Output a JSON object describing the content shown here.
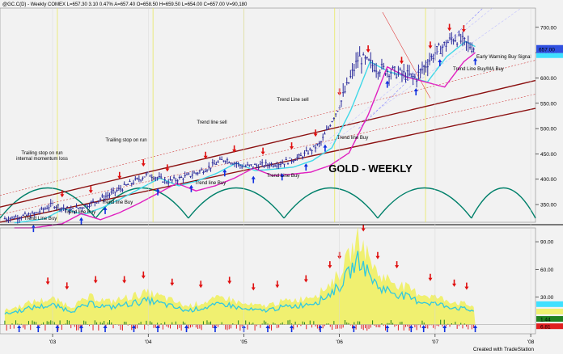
{
  "header": {
    "text": "@GC.C(D) - Weekly COMEX L=657.30 3.10 0.47% A=657.40 O=658.50 H=659.50 L=654.00 C=657.00 V=90,180"
  },
  "footer": {
    "credit": "Created with TradeStation"
  },
  "colors": {
    "background": "#f2f2f2",
    "bars": "#2a2a9a",
    "sell_arrow": "#e01010",
    "buy_arrow": "#1030e0",
    "trend_channel": "#8b1010",
    "ma_fast": "#40d8e8",
    "ma_slow": "#e020c0",
    "cycle": "#00806a",
    "osc_fill": "#f0f070",
    "osc_line": "#30c8e0",
    "hist_pos": "#208020",
    "hist_neg": "#e02020"
  },
  "chart_data": [
    {
      "type": "candlestick",
      "title": "GOLD - WEEKLY",
      "ylim": [
        315,
        738
      ],
      "y_ticks": [
        "700.00",
        "650.00",
        "600.00",
        "550.00",
        "500.00",
        "450.00",
        "400.00",
        "350.00"
      ],
      "x_ticks": [
        "'03",
        "'04",
        "'05",
        "'06",
        "'07",
        "'08"
      ],
      "last_price": "657.00",
      "x": [
        2002.5,
        2002.8,
        2003.0,
        2003.2,
        2003.4,
        2003.6,
        2003.8,
        2004.0,
        2004.2,
        2004.4,
        2004.6,
        2004.8,
        2005.0,
        2005.2,
        2005.4,
        2005.6,
        2005.8,
        2006.0,
        2006.2,
        2006.4,
        2006.6,
        2006.8,
        2007.0,
        2007.2,
        2007.4
      ],
      "series": [
        {
          "values": [
            322,
            330,
            350,
            338,
            352,
            370,
            390,
            410,
            395,
            405,
            420,
            440,
            425,
            428,
            432,
            445,
            470,
            545,
            640,
            620,
            610,
            600,
            650,
            680,
            660
          ]
        }
      ],
      "annotations": [
        "Trailing stop on run internal momentum loss",
        "Trend Line Buy",
        "Trend line Buy",
        "Trend line Buy",
        "Trailing stop on run",
        "Trend line sell",
        "Trend line Buy",
        "Trend Line sell",
        "Trend Line Buy",
        "Trend line Buy",
        "Trend Line Buy/MA Buy",
        "Early Warning Buy Signal"
      ]
    },
    {
      "type": "area",
      "name": "oscillator",
      "ylim": [
        -10,
        105
      ],
      "y_ticks": [
        "90.00",
        "60.00",
        "30.00"
      ],
      "last_values": [
        "1.44",
        "6.81"
      ],
      "x": [
        2002.5,
        2002.8,
        2003.0,
        2003.2,
        2003.4,
        2003.6,
        2003.8,
        2004.0,
        2004.2,
        2004.4,
        2004.6,
        2004.8,
        2005.0,
        2005.2,
        2005.4,
        2005.6,
        2005.8,
        2006.0,
        2006.2,
        2006.4,
        2006.6,
        2006.8,
        2007.0,
        2007.2,
        2007.4
      ],
      "series": [
        {
          "values": [
            15,
            25,
            28,
            20,
            30,
            25,
            30,
            35,
            28,
            20,
            25,
            30,
            22,
            20,
            25,
            28,
            35,
            55,
            95,
            55,
            45,
            35,
            30,
            25,
            20
          ]
        }
      ]
    }
  ]
}
